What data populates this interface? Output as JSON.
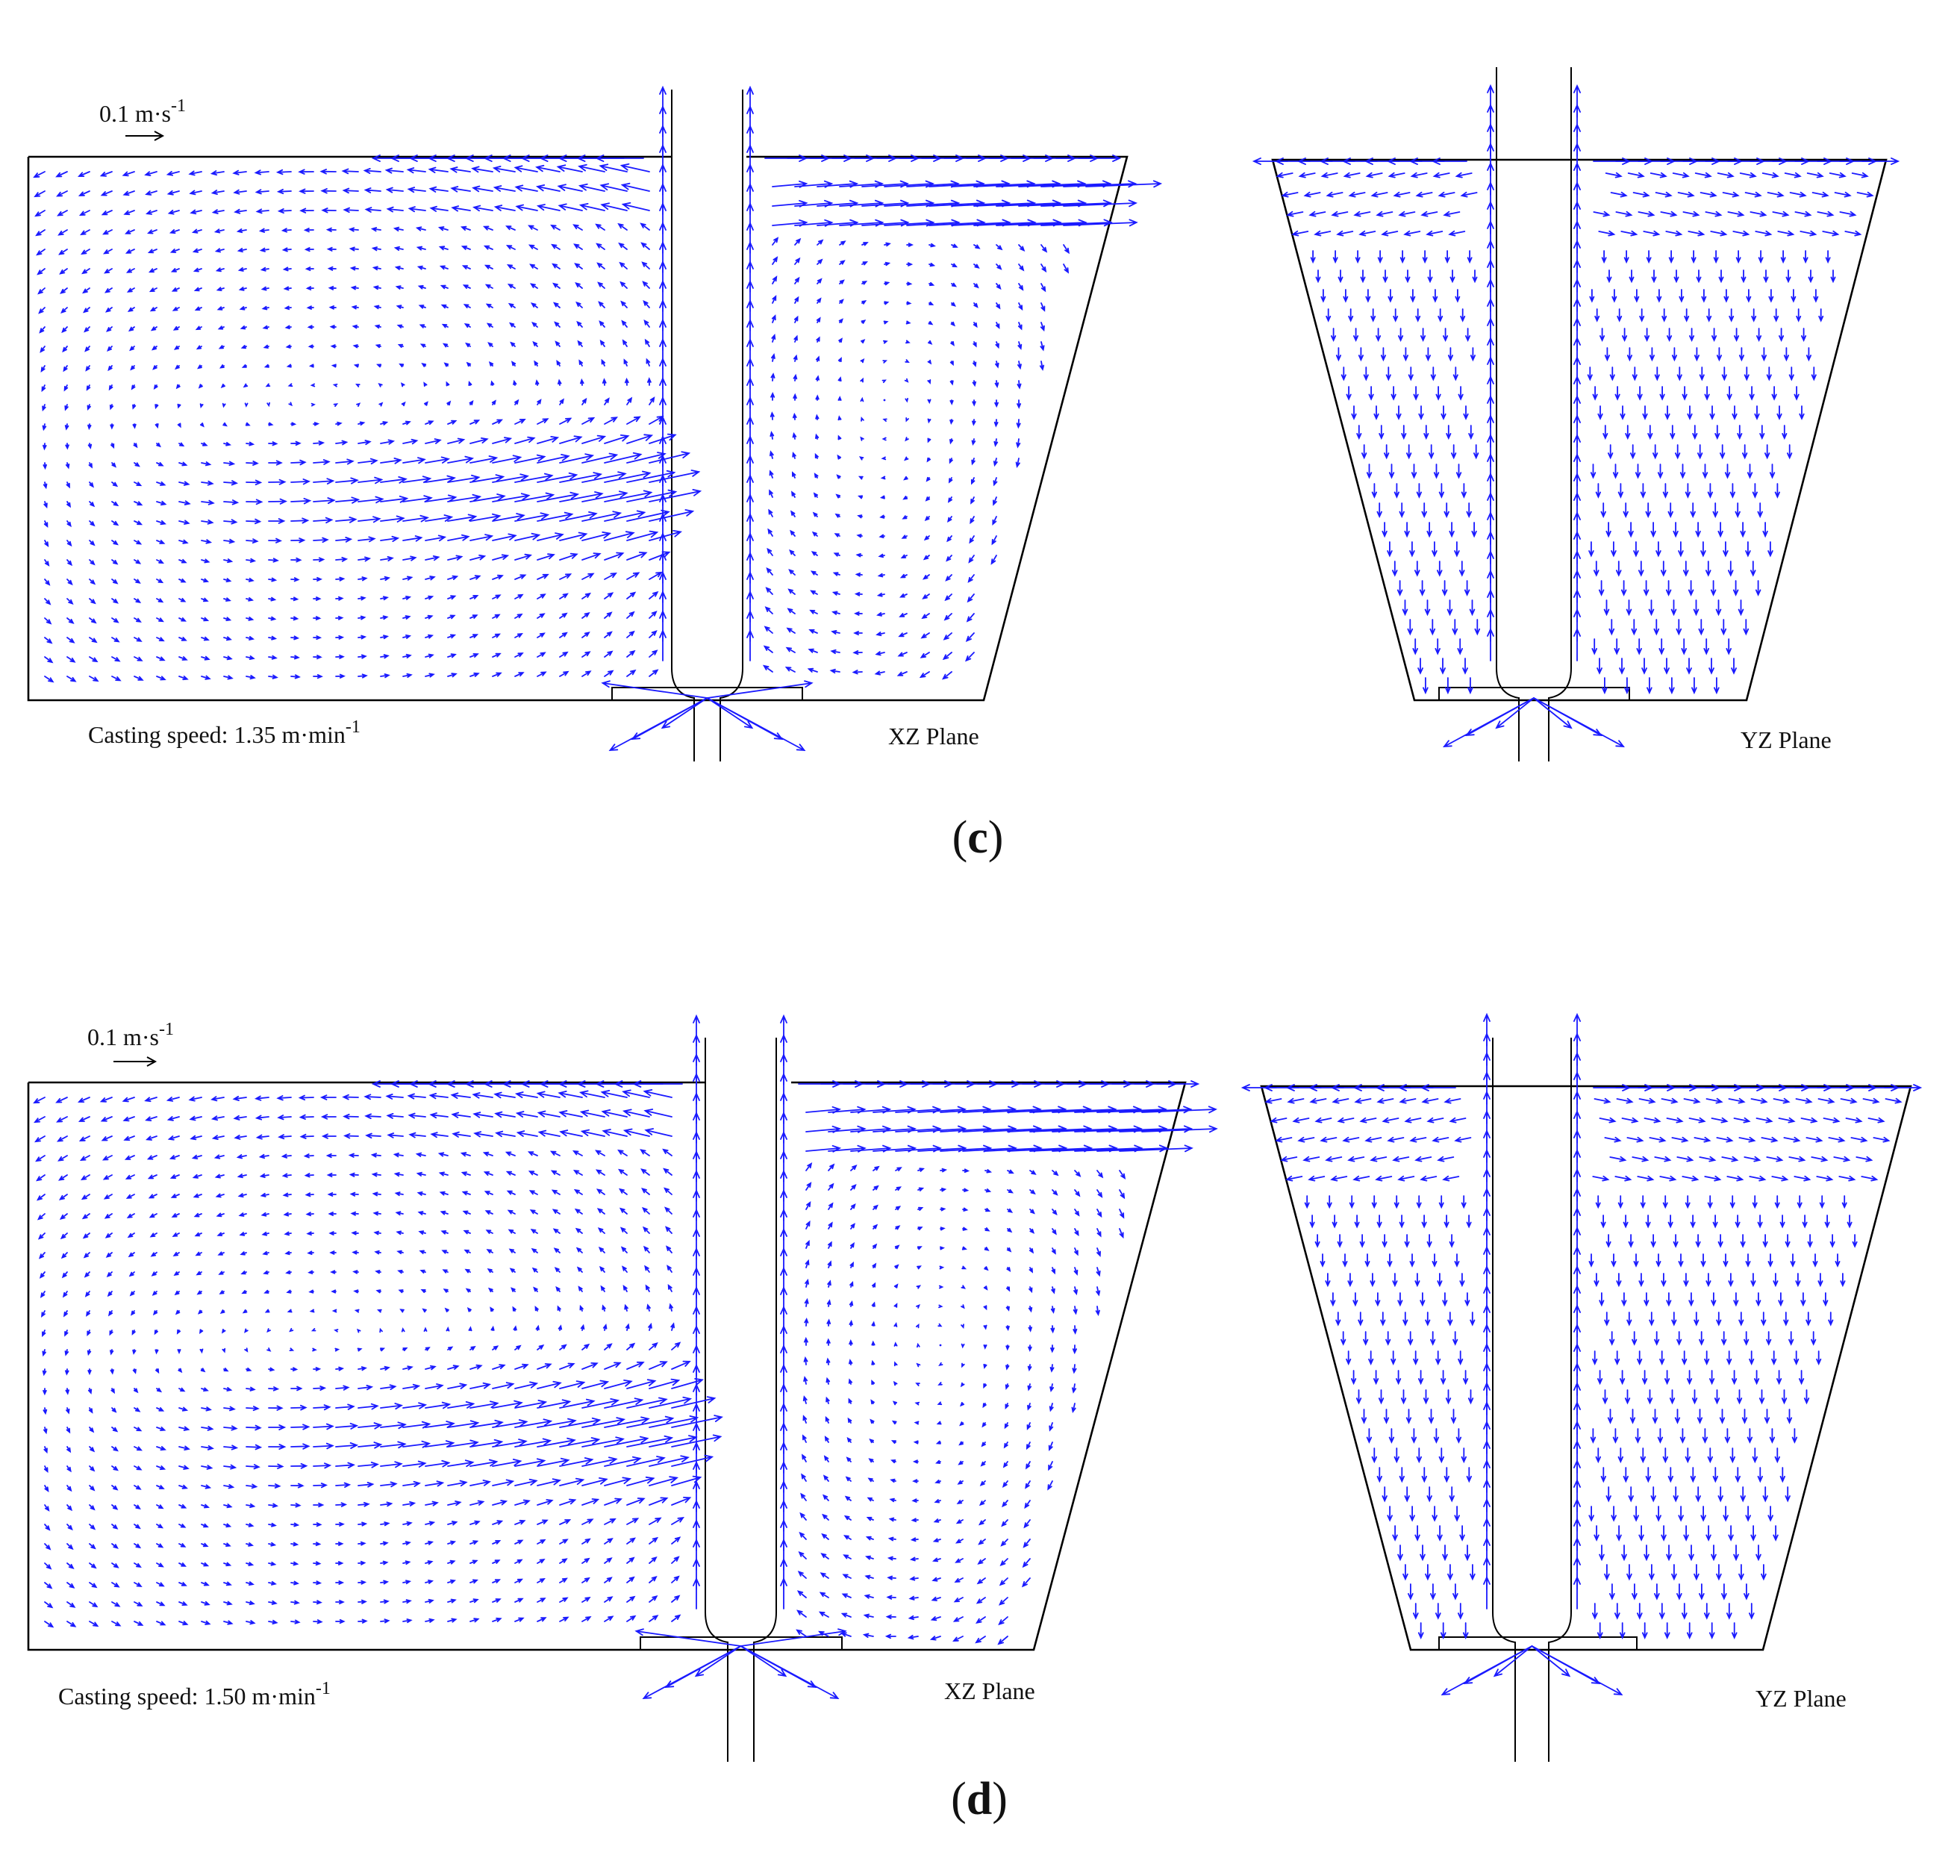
{
  "colors": {
    "vector": "#1a1aff",
    "outline": "#000000",
    "background": "#ffffff"
  },
  "panels": [
    {
      "id": "c",
      "caption_open": "(",
      "caption_letter": "c",
      "caption_close": ")",
      "scale_value": "0.1 m·s",
      "scale_exp": "-1",
      "speed_prefix": "Casting speed: 1.35 m·min",
      "speed_exp": "-1",
      "xz_label": "XZ Plane",
      "yz_label": "YZ Plane"
    },
    {
      "id": "d",
      "caption_open": "(",
      "caption_letter": "d",
      "caption_close": ")",
      "scale_value": "0.1 m·s",
      "scale_exp": "-1",
      "speed_prefix": "Casting speed: 1.50 m·min",
      "speed_exp": "-1",
      "xz_label": "XZ Plane",
      "yz_label": "YZ Plane"
    }
  ]
}
